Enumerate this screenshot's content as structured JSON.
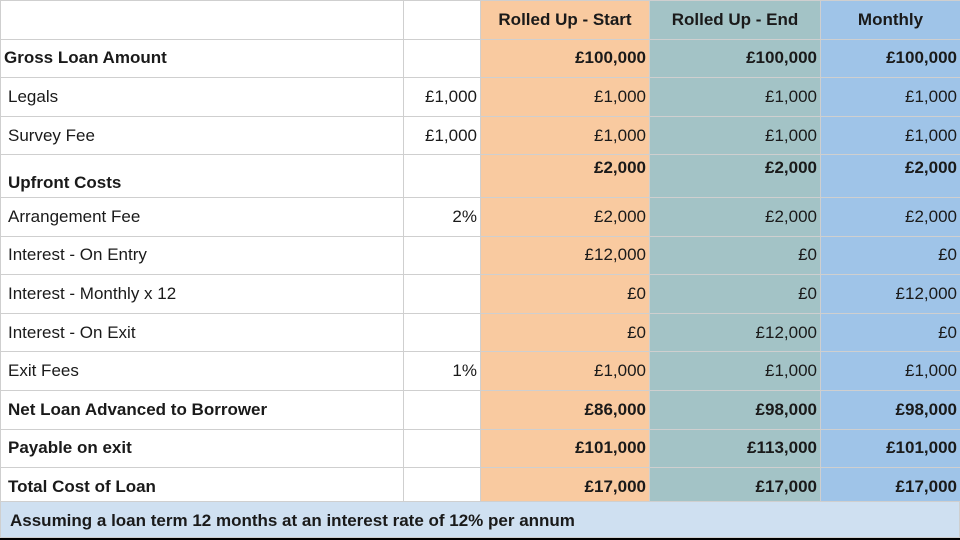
{
  "colors": {
    "rolled_up_start": "#f9caa0",
    "rolled_up_end": "#a3c3c6",
    "monthly": "#9fc4e8",
    "footnote_bg": "#cfe0f1"
  },
  "headers": {
    "label": "",
    "rate": "",
    "rolled_up_start": "Rolled Up - Start",
    "rolled_up_end": "Rolled Up - End",
    "monthly": "Monthly"
  },
  "rows": [
    {
      "label": "Gross Loan Amount",
      "rate": "",
      "a": "£100,000",
      "b": "£100,000",
      "c": "£100,000"
    },
    {
      "label": "Legals",
      "rate": "£1,000",
      "a": "£1,000",
      "b": "£1,000",
      "c": "£1,000"
    },
    {
      "label": "Survey Fee",
      "rate": "£1,000",
      "a": "£1,000",
      "b": "£1,000",
      "c": "£1,000"
    },
    {
      "label": "Upfront Costs",
      "rate": "",
      "a": "£2,000",
      "b": "£2,000",
      "c": "£2,000"
    },
    {
      "label": "Arrangement Fee",
      "rate": "2%",
      "a": "£2,000",
      "b": "£2,000",
      "c": "£2,000"
    },
    {
      "label": "Interest - On Entry",
      "rate": "",
      "a": "£12,000",
      "b": "£0",
      "c": "£0"
    },
    {
      "label": "Interest - Monthly x 12",
      "rate": "",
      "a": "£0",
      "b": "£0",
      "c": "£12,000"
    },
    {
      "label": "Interest - On Exit",
      "rate": "",
      "a": "£0",
      "b": "£12,000",
      "c": "£0"
    },
    {
      "label": "Exit Fees",
      "rate": "1%",
      "a": "£1,000",
      "b": "£1,000",
      "c": "£1,000"
    },
    {
      "label": "Net Loan Advanced to Borrower",
      "rate": "",
      "a": "£86,000",
      "b": "£98,000",
      "c": "£98,000"
    },
    {
      "label": "Payable on exit",
      "rate": "",
      "a": "£101,000",
      "b": "£113,000",
      "c": "£101,000"
    },
    {
      "label": "Total Cost of Loan",
      "rate": "",
      "a": "£17,000",
      "b": "£17,000",
      "c": "£17,000"
    }
  ],
  "footnote": "Assuming a loan term 12 months at an interest rate of 12% per annum"
}
